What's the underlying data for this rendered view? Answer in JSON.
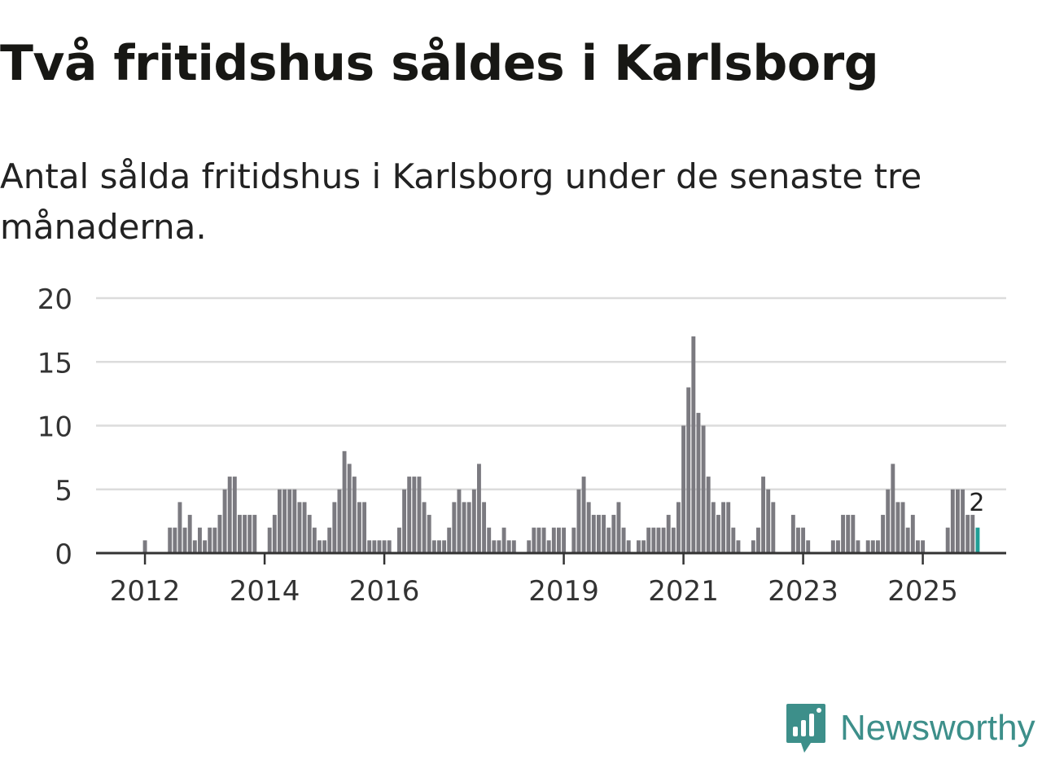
{
  "header": {
    "title": "Två fritidshus såldes i Karlsborg",
    "subtitle": "Antal sålda fritidshus i Karlsborg under de senaste tre månaderna."
  },
  "brand": {
    "name": "Newsworthy",
    "color": "#3d8f8a"
  },
  "chart_data": {
    "type": "bar",
    "title": "Två fritidshus såldes i Karlsborg",
    "subtitle": "Antal sålda fritidshus i Karlsborg under de senaste tre månaderna.",
    "xlabel": "",
    "ylabel": "",
    "ylim": [
      0,
      20
    ],
    "yticks": [
      0,
      5,
      10,
      15,
      20
    ],
    "grid": true,
    "start": "2011-12",
    "frequency": "monthly",
    "x_tick_labels": [
      {
        "label": "2012",
        "month_index": 1
      },
      {
        "label": "2014",
        "month_index": 25
      },
      {
        "label": "2016",
        "month_index": 49
      },
      {
        "label": "2019",
        "month_index": 85
      },
      {
        "label": "2021",
        "month_index": 109
      },
      {
        "label": "2023",
        "month_index": 133
      },
      {
        "label": "2025",
        "month_index": 157
      }
    ],
    "values": [
      0,
      1,
      0,
      0,
      0,
      0,
      2,
      2,
      4,
      2,
      3,
      1,
      2,
      1,
      2,
      2,
      3,
      5,
      6,
      6,
      3,
      3,
      3,
      3,
      0,
      0,
      2,
      3,
      5,
      5,
      5,
      5,
      4,
      4,
      3,
      2,
      1,
      1,
      2,
      4,
      5,
      8,
      7,
      6,
      4,
      4,
      1,
      1,
      1,
      1,
      1,
      0,
      2,
      5,
      6,
      6,
      6,
      4,
      3,
      1,
      1,
      1,
      2,
      4,
      5,
      4,
      4,
      5,
      7,
      4,
      2,
      1,
      1,
      2,
      1,
      1,
      0,
      0,
      1,
      2,
      2,
      2,
      1,
      2,
      2,
      2,
      0,
      2,
      5,
      6,
      4,
      3,
      3,
      3,
      2,
      3,
      4,
      2,
      1,
      0,
      1,
      1,
      2,
      2,
      2,
      2,
      3,
      2,
      4,
      10,
      13,
      17,
      11,
      10,
      6,
      4,
      3,
      4,
      4,
      2,
      1,
      0,
      0,
      1,
      2,
      6,
      5,
      4,
      0,
      0,
      0,
      3,
      2,
      2,
      1,
      0,
      0,
      0,
      0,
      1,
      1,
      3,
      3,
      3,
      1,
      0,
      1,
      1,
      1,
      3,
      5,
      7,
      4,
      4,
      2,
      3,
      1,
      1,
      0,
      0,
      0,
      0,
      2,
      5,
      5,
      5,
      3,
      3,
      2
    ],
    "bar_color": "#7b7a80",
    "highlight_color": "#1f9e96",
    "highlight_label": "2"
  }
}
